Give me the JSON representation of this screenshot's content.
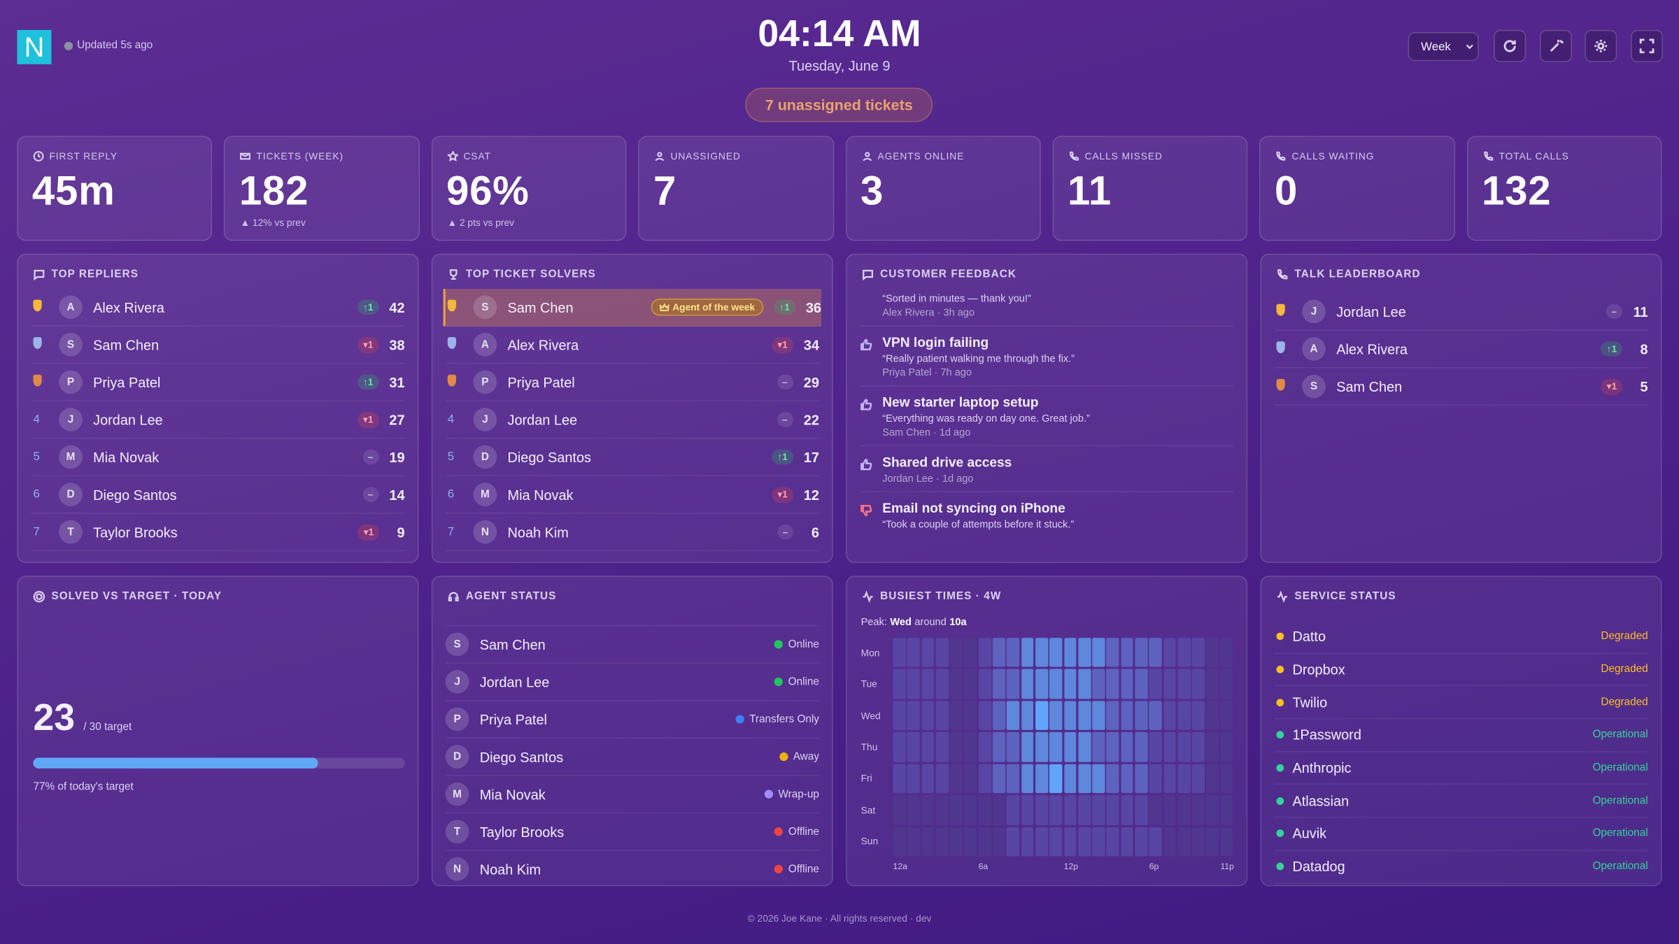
{
  "header": {
    "logo": "N",
    "updated": "Updated 5s ago",
    "time": "04:14 AM",
    "date": "Tuesday, June 9",
    "unassigned_badge": "7 unassigned tickets",
    "range_select": "Week"
  },
  "kpis": [
    {
      "label": "FIRST REPLY",
      "value": "45m"
    },
    {
      "label": "TICKETS (WEEK)",
      "value": "182",
      "delta": "▲ 12% vs prev"
    },
    {
      "label": "CSAT",
      "value": "96%",
      "delta": "▲ 2 pts vs prev"
    },
    {
      "label": "UNASSIGNED",
      "value": "7"
    },
    {
      "label": "AGENTS ONLINE",
      "value": "3"
    },
    {
      "label": "CALLS MISSED",
      "value": "11"
    },
    {
      "label": "CALLS WAITING",
      "value": "0"
    },
    {
      "label": "TOTAL CALLS",
      "value": "132"
    }
  ],
  "top_repliers": {
    "title": "TOP REPLIERS",
    "rows": [
      {
        "medal": "gold",
        "initial": "A",
        "name": "Alex Rivera",
        "trend": "up",
        "change": "↑1",
        "count": 42
      },
      {
        "medal": "silver",
        "initial": "S",
        "name": "Sam Chen",
        "trend": "down",
        "change": "▾1",
        "count": 38
      },
      {
        "medal": "bronze",
        "initial": "P",
        "name": "Priya Patel",
        "trend": "up",
        "change": "↑1",
        "count": 31
      },
      {
        "rank": 4,
        "initial": "J",
        "name": "Jordan Lee",
        "trend": "down",
        "change": "▾1",
        "count": 27
      },
      {
        "rank": 5,
        "initial": "M",
        "name": "Mia Novak",
        "trend": "flat",
        "change": "–",
        "count": 19
      },
      {
        "rank": 6,
        "initial": "D",
        "name": "Diego Santos",
        "trend": "flat",
        "change": "–",
        "count": 14
      },
      {
        "rank": 7,
        "initial": "T",
        "name": "Taylor Brooks",
        "trend": "down",
        "change": "▾1",
        "count": 9
      }
    ]
  },
  "top_solvers": {
    "title": "TOP TICKET SOLVERS",
    "rows": [
      {
        "medal": "gold",
        "initial": "S",
        "name": "Sam Chen",
        "badge": "Agent of the week",
        "trend": "up",
        "change": "↑1",
        "count": 36
      },
      {
        "medal": "silver",
        "initial": "A",
        "name": "Alex Rivera",
        "trend": "down",
        "change": "▾1",
        "count": 34
      },
      {
        "medal": "bronze",
        "initial": "P",
        "name": "Priya Patel",
        "trend": "flat",
        "change": "–",
        "count": 29
      },
      {
        "rank": 4,
        "initial": "J",
        "name": "Jordan Lee",
        "trend": "flat",
        "change": "–",
        "count": 22
      },
      {
        "rank": 5,
        "initial": "D",
        "name": "Diego Santos",
        "trend": "up",
        "change": "↑1",
        "count": 17
      },
      {
        "rank": 6,
        "initial": "M",
        "name": "Mia Novak",
        "trend": "down",
        "change": "▾1",
        "count": 12
      },
      {
        "rank": 7,
        "initial": "N",
        "name": "Noah Kim",
        "trend": "flat",
        "change": "–",
        "count": 6
      }
    ]
  },
  "feedback": {
    "title": "CUSTOMER FEEDBACK",
    "items": [
      {
        "quote": "“Sorted in minutes — thank you!”",
        "meta": "Alex Rivera · 3h ago"
      },
      {
        "sentiment": "up",
        "subject": "VPN login failing",
        "quote": "“Really patient walking me through the fix.”",
        "meta": "Priya Patel · 7h ago"
      },
      {
        "sentiment": "up",
        "subject": "New starter laptop setup",
        "quote": "“Everything was ready on day one. Great job.”",
        "meta": "Sam Chen · 1d ago"
      },
      {
        "sentiment": "up",
        "subject": "Shared drive access",
        "meta": "Jordan Lee · 1d ago"
      },
      {
        "sentiment": "down",
        "subject": "Email not syncing on iPhone",
        "quote": "“Took a couple of attempts before it stuck.”"
      }
    ]
  },
  "talk_leaderboard": {
    "title": "TALK LEADERBOARD",
    "rows": [
      {
        "medal": "gold",
        "initial": "J",
        "name": "Jordan Lee",
        "trend": "flat",
        "change": "–",
        "count": 11
      },
      {
        "medal": "silver",
        "initial": "A",
        "name": "Alex Rivera",
        "trend": "up",
        "change": "↑1",
        "count": 8
      },
      {
        "medal": "bronze",
        "initial": "S",
        "name": "Sam Chen",
        "trend": "down",
        "change": "▾1",
        "count": 5
      }
    ]
  },
  "solved": {
    "title": "SOLVED VS TARGET · TODAY",
    "value": 23,
    "target": {
      "value": 30,
      "label": "/ 30 target"
    },
    "caption": "77% of today's target",
    "color": "#5fa8f5"
  },
  "agent_status": {
    "title": "AGENT STATUS",
    "rows": [
      {
        "initial": "S",
        "name": "Sam Chen",
        "status": "Online",
        "color": "#22c55e"
      },
      {
        "initial": "J",
        "name": "Jordan Lee",
        "status": "Online",
        "color": "#22c55e"
      },
      {
        "initial": "P",
        "name": "Priya Patel",
        "status": "Transfers Only",
        "color": "#3b82f6"
      },
      {
        "initial": "D",
        "name": "Diego Santos",
        "status": "Away",
        "color": "#eab308"
      },
      {
        "initial": "M",
        "name": "Mia Novak",
        "status": "Wrap-up",
        "color": "#a78bfa"
      },
      {
        "initial": "T",
        "name": "Taylor Brooks",
        "status": "Offline",
        "color": "#ef4444"
      },
      {
        "initial": "N",
        "name": "Noah Kim",
        "status": "Offline",
        "color": "#ef4444"
      }
    ]
  },
  "busiest": {
    "title": "BUSIEST TIMES · 4W",
    "peak_prefix": "Peak:",
    "peak_day": "Wed",
    "peak_mid": "around",
    "peak_hour": "10a",
    "days": [
      "Mon",
      "Tue",
      "Wed",
      "Thu",
      "Fri",
      "Sat",
      "Sun"
    ],
    "hours": [
      "12a",
      null,
      null,
      null,
      null,
      null,
      "6a",
      null,
      null,
      null,
      null,
      null,
      "12p",
      null,
      null,
      null,
      null,
      null,
      "6p",
      null,
      null,
      null,
      null,
      "11p"
    ],
    "colors": [
      "#4a2c84",
      "#50368f",
      "#5846a4",
      "#5d63bf",
      "#5e88dc",
      "#60a5fa"
    ],
    "values": [
      [
        2,
        2,
        2,
        2,
        1,
        1,
        2,
        3,
        3,
        4,
        4,
        4,
        4,
        4,
        4,
        3,
        3,
        3,
        3,
        2,
        2,
        2,
        1,
        1
      ],
      [
        2,
        2,
        2,
        2,
        1,
        1,
        2,
        3,
        3,
        4,
        4,
        4,
        4,
        4,
        3,
        3,
        3,
        3,
        2,
        2,
        2,
        2,
        1,
        1
      ],
      [
        2,
        2,
        2,
        2,
        1,
        1,
        2,
        3,
        4,
        4,
        5,
        4,
        4,
        4,
        4,
        3,
        3,
        3,
        3,
        2,
        2,
        2,
        1,
        1
      ],
      [
        2,
        2,
        2,
        2,
        1,
        1,
        2,
        3,
        3,
        4,
        4,
        4,
        4,
        4,
        3,
        3,
        3,
        3,
        2,
        2,
        2,
        2,
        1,
        1
      ],
      [
        2,
        2,
        2,
        2,
        1,
        1,
        2,
        3,
        3,
        4,
        4,
        5,
        4,
        4,
        4,
        3,
        3,
        3,
        2,
        2,
        2,
        2,
        1,
        1
      ],
      [
        1,
        1,
        1,
        1,
        1,
        1,
        1,
        1,
        2,
        2,
        2,
        2,
        2,
        2,
        2,
        2,
        2,
        2,
        1,
        1,
        1,
        1,
        1,
        1
      ],
      [
        1,
        1,
        1,
        1,
        1,
        1,
        1,
        1,
        2,
        2,
        2,
        2,
        2,
        2,
        2,
        2,
        2,
        2,
        2,
        1,
        1,
        1,
        1,
        1
      ]
    ]
  },
  "services": {
    "title": "SERVICE STATUS",
    "rows": [
      {
        "name": "Datto",
        "status": "Degraded",
        "color": "#fbbf24"
      },
      {
        "name": "Dropbox",
        "status": "Degraded",
        "color": "#fbbf24"
      },
      {
        "name": "Twilio",
        "status": "Degraded",
        "color": "#fbbf24"
      },
      {
        "name": "1Password",
        "status": "Operational",
        "color": "#34d399"
      },
      {
        "name": "Anthropic",
        "status": "Operational",
        "color": "#34d399"
      },
      {
        "name": "Atlassian",
        "status": "Operational",
        "color": "#34d399"
      },
      {
        "name": "Auvik",
        "status": "Operational",
        "color": "#34d399"
      },
      {
        "name": "Datadog",
        "status": "Operational",
        "color": "#34d399"
      }
    ]
  },
  "footer": "© 2026 Joe Kane · All rights reserved · dev"
}
